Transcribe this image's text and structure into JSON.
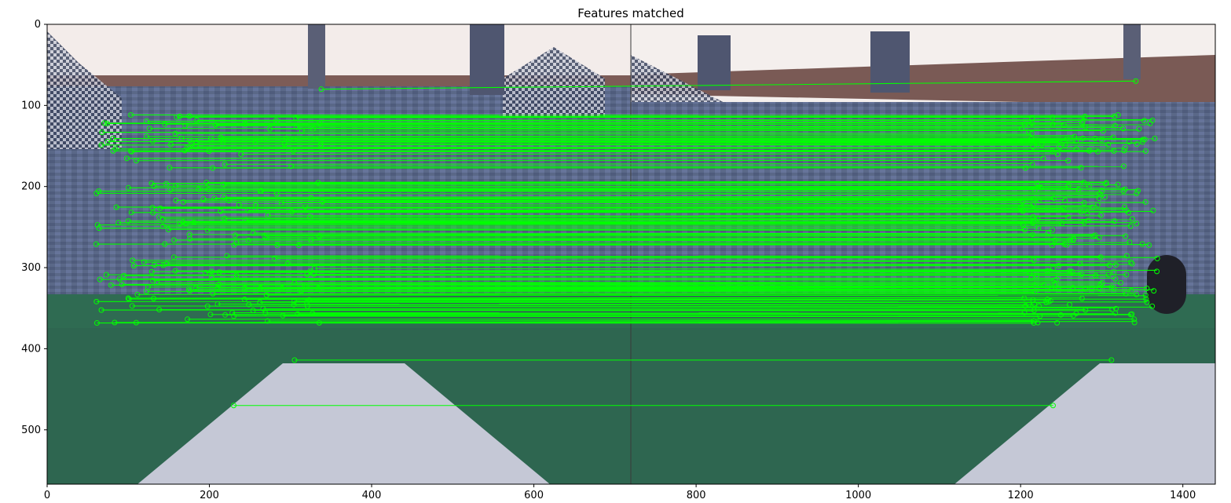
{
  "title": "Features matched",
  "colors": {
    "match_line": "#00ff00",
    "keypoint": "#00ff00",
    "sky": "#f4eeec",
    "roof": "#7c5b55",
    "wall": "#5f6d8e",
    "lawn": "#2f6a52",
    "path": "#c4c8d8"
  },
  "axes": {
    "x_ticks": [
      {
        "value": 0,
        "label": "0"
      },
      {
        "value": 200,
        "label": "200"
      },
      {
        "value": 400,
        "label": "400"
      },
      {
        "value": 600,
        "label": "600"
      },
      {
        "value": 800,
        "label": "800"
      },
      {
        "value": 1000,
        "label": "1000"
      },
      {
        "value": 1200,
        "label": "1200"
      },
      {
        "value": 1400,
        "label": "1400"
      }
    ],
    "y_ticks": [
      {
        "value": 0,
        "label": "0"
      },
      {
        "value": 100,
        "label": "100"
      },
      {
        "value": 200,
        "label": "200"
      },
      {
        "value": 300,
        "label": "300"
      },
      {
        "value": 400,
        "label": "400"
      },
      {
        "value": 500,
        "label": "500"
      }
    ],
    "xlim": [
      0,
      1440
    ],
    "ylim": [
      567,
      0
    ]
  },
  "image": {
    "left_width": 720,
    "description_icon": "stitched-photo-pair"
  }
}
